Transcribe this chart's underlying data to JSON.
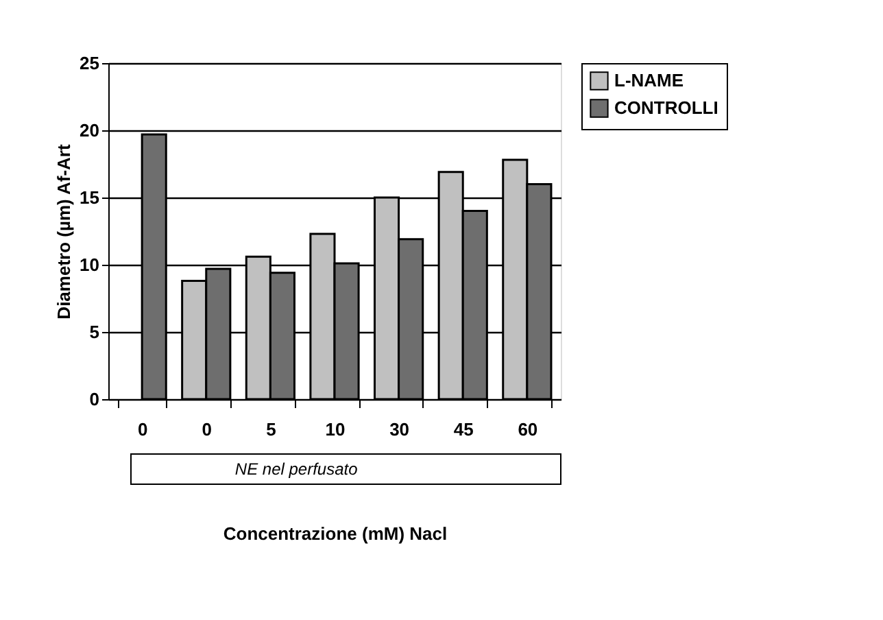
{
  "chart_data": {
    "type": "bar",
    "categories": [
      "0",
      "0",
      "5",
      "10",
      "30",
      "45",
      "60"
    ],
    "series": [
      {
        "name": "L-NAME",
        "color": "#c0c0c0",
        "values": [
          null,
          8.8,
          10.6,
          12.3,
          15.0,
          16.9,
          17.8
        ]
      },
      {
        "name": "CONTROLLI",
        "color": "#6e6e6e",
        "values": [
          19.7,
          9.7,
          9.4,
          10.1,
          11.9,
          14.0,
          16.0
        ]
      }
    ],
    "ylim": [
      0,
      25
    ],
    "yticks": [
      0,
      5,
      10,
      15,
      20,
      25
    ],
    "xlabel": "Concentrazione (mM)  Nacl",
    "ylabel": "Diametro (µm) Af-Art",
    "annotations": [
      "NE nel perfusato"
    ],
    "grid": "y",
    "legend": "top right"
  }
}
